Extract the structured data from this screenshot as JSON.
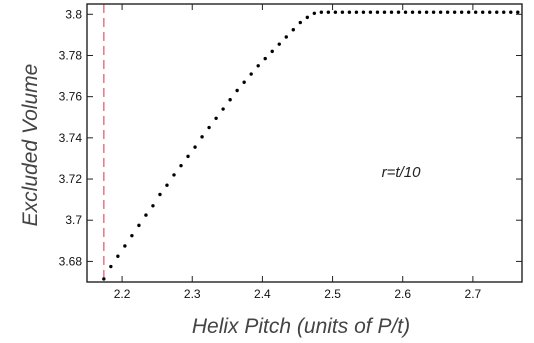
{
  "chart_data": {
    "type": "scatter",
    "title": "",
    "xlabel": "Helix Pitch (units of P/t)",
    "ylabel": "Excluded Volume",
    "xlim": [
      2.15,
      2.77
    ],
    "ylim": [
      3.67,
      3.805
    ],
    "x_ticks": [
      2.2,
      2.3,
      2.4,
      2.5,
      2.6,
      2.7
    ],
    "x_tick_labels": [
      "2.2",
      "2.3",
      "2.4",
      "2.5",
      "2.6",
      "2.7"
    ],
    "y_ticks": [
      3.68,
      3.7,
      3.72,
      3.74,
      3.76,
      3.78,
      3.8
    ],
    "y_tick_labels": [
      "3.68",
      "3.7",
      "3.72",
      "3.74",
      "3.76",
      "3.78",
      "3.8"
    ],
    "grid": false,
    "annotation": {
      "text": "r=t/10",
      "x": 2.57,
      "y": 3.721
    },
    "vertical_line": {
      "x": 2.174,
      "style": "dashed",
      "color": "#e0607a"
    },
    "marker_color": "#000000",
    "series": [
      {
        "x": [
          2.174,
          2.184,
          2.194,
          2.204,
          2.214,
          2.224,
          2.234,
          2.244,
          2.254,
          2.264,
          2.274,
          2.284,
          2.294,
          2.304,
          2.314,
          2.324,
          2.334,
          2.344,
          2.354,
          2.364,
          2.374,
          2.384,
          2.394,
          2.404,
          2.414,
          2.424,
          2.434,
          2.444,
          2.454,
          2.464,
          2.474,
          2.484,
          2.494,
          2.504,
          2.514,
          2.524,
          2.534,
          2.544,
          2.554,
          2.564,
          2.574,
          2.584,
          2.594,
          2.604,
          2.614,
          2.624,
          2.634,
          2.644,
          2.654,
          2.664,
          2.674,
          2.684,
          2.694,
          2.704,
          2.714,
          2.724,
          2.734,
          2.744,
          2.754,
          2.764
        ],
        "y": [
          3.6715,
          3.6775,
          3.6825,
          3.6875,
          3.6925,
          3.6975,
          3.7025,
          3.707,
          3.7125,
          3.717,
          3.722,
          3.7265,
          3.731,
          3.7355,
          3.7405,
          3.745,
          3.7495,
          3.754,
          3.7585,
          3.763,
          3.767,
          3.771,
          3.775,
          3.7785,
          3.782,
          3.7855,
          3.789,
          3.7925,
          3.796,
          3.7985,
          3.8005,
          3.801,
          3.801,
          3.801,
          3.801,
          3.801,
          3.801,
          3.801,
          3.801,
          3.801,
          3.801,
          3.801,
          3.801,
          3.801,
          3.801,
          3.801,
          3.801,
          3.801,
          3.801,
          3.801,
          3.801,
          3.801,
          3.801,
          3.801,
          3.801,
          3.801,
          3.801,
          3.801,
          3.801,
          3.801
        ]
      }
    ]
  }
}
